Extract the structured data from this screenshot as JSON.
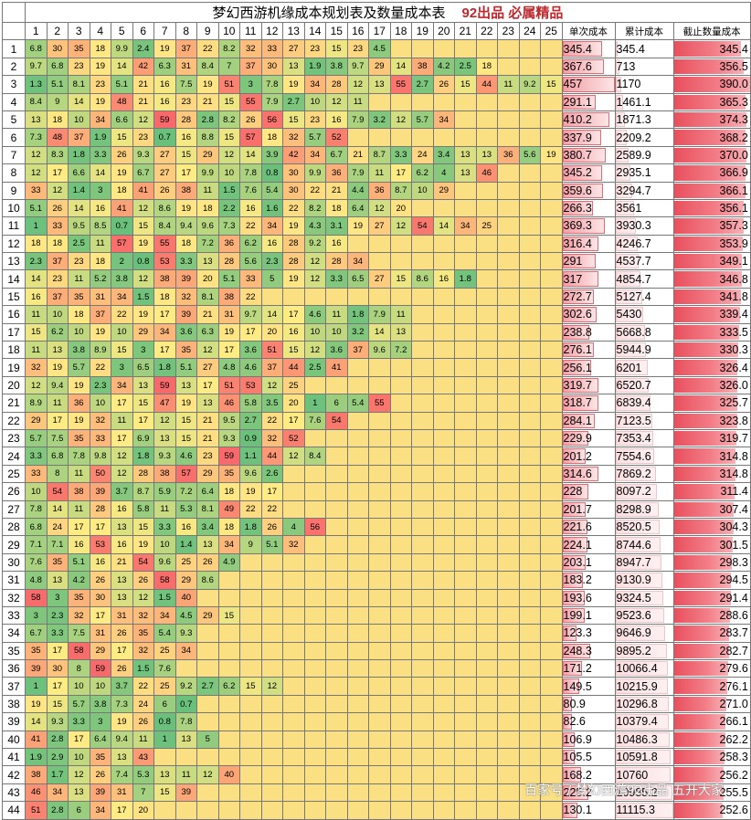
{
  "header": {
    "title": "梦幻西游机缘成本规划表及数量成本表",
    "tag": "92出品  必属精品",
    "col_single": "单次成本",
    "col_cum": "累计成本",
    "col_avg": "截止数量成本"
  },
  "columns": [
    "1",
    "2",
    "3",
    "4",
    "5",
    "6",
    "7",
    "8",
    "9",
    "10",
    "11",
    "12",
    "13",
    "14",
    "15",
    "16",
    "17",
    "18",
    "19",
    "20",
    "21",
    "22",
    "23",
    "24",
    "25"
  ],
  "rows": [
    {
      "n": "1",
      "v": [
        "6.8",
        "30",
        "35",
        "18",
        "9.9",
        "2.4",
        "19",
        "37",
        "22",
        "8.2",
        "32",
        "33",
        "27",
        "23",
        "15",
        "23",
        "4.5"
      ],
      "single": "345.4",
      "cum": "345.4",
      "avg": "345.4"
    },
    {
      "n": "2",
      "v": [
        "9.7",
        "6.8",
        "23",
        "19",
        "14",
        "42",
        "6.3",
        "31",
        "8.4",
        "7",
        "37",
        "30",
        "13",
        "1.9",
        "3.8",
        "9.7",
        "29",
        "14",
        "38",
        "4.2",
        "2.5",
        "18"
      ],
      "single": "367.6",
      "cum": "713",
      "avg": "356.5"
    },
    {
      "n": "3",
      "v": [
        "1.3",
        "5.1",
        "8.1",
        "23",
        "5.1",
        "21",
        "16",
        "7.5",
        "19",
        "51",
        "3",
        "7.8",
        "19",
        "34",
        "28",
        "12",
        "13",
        "55",
        "2.7",
        "26",
        "15",
        "44",
        "11",
        "9.2",
        "15"
      ],
      "single": "457",
      "cum": "1170",
      "avg": "390.0"
    },
    {
      "n": "4",
      "v": [
        "8.4",
        "9",
        "14",
        "19",
        "48",
        "21",
        "16",
        "23",
        "21",
        "15",
        "55",
        "7.9",
        "2.7",
        "10",
        "12",
        "11"
      ],
      "single": "291.1",
      "cum": "1461.1",
      "avg": "365.3"
    },
    {
      "n": "5",
      "v": [
        "13",
        "18",
        "10",
        "34",
        "6.6",
        "12",
        "59",
        "28",
        "2.8",
        "8.2",
        "26",
        "56",
        "15",
        "23",
        "16",
        "7.9",
        "3.2",
        "12",
        "5.7",
        "34"
      ],
      "single": "410.2",
      "cum": "1871.3",
      "avg": "374.3"
    },
    {
      "n": "6",
      "v": [
        "7.3",
        "48",
        "37",
        "1.9",
        "15",
        "23",
        "0.7",
        "16",
        "8.8",
        "15",
        "57",
        "18",
        "32",
        "5.7",
        "52"
      ],
      "single": "337.9",
      "cum": "2209.2",
      "avg": "368.2"
    },
    {
      "n": "7",
      "v": [
        "12",
        "8.3",
        "1.8",
        "3.3",
        "26",
        "9.3",
        "27",
        "15",
        "29",
        "12",
        "14",
        "3.9",
        "42",
        "34",
        "6.7",
        "21",
        "8.7",
        "3.3",
        "24",
        "3.4",
        "13",
        "13",
        "36",
        "5.6",
        "19"
      ],
      "single": "380.7",
      "cum": "2589.9",
      "avg": "370.0"
    },
    {
      "n": "8",
      "v": [
        "12",
        "17",
        "6.6",
        "14",
        "19",
        "6.7",
        "27",
        "17",
        "9.9",
        "10",
        "7.8",
        "0.8",
        "30",
        "9.9",
        "36",
        "7.9",
        "11",
        "17",
        "6.2",
        "4",
        "13",
        "46"
      ],
      "single": "345.2",
      "cum": "2935.1",
      "avg": "366.9"
    },
    {
      "n": "9",
      "v": [
        "33",
        "12",
        "1.4",
        "3",
        "18",
        "41",
        "26",
        "38",
        "11",
        "1.5",
        "7.6",
        "5.4",
        "30",
        "22",
        "21",
        "4.4",
        "36",
        "8.7",
        "10",
        "29"
      ],
      "single": "359.6",
      "cum": "3294.7",
      "avg": "366.1"
    },
    {
      "n": "10",
      "v": [
        "5.1",
        "26",
        "14",
        "16",
        "41",
        "12",
        "8.6",
        "19",
        "18",
        "2.2",
        "16",
        "1.6",
        "22",
        "8.2",
        "18",
        "6.4",
        "12",
        "20"
      ],
      "single": "266.3",
      "cum": "3561",
      "avg": "356.1"
    },
    {
      "n": "11",
      "v": [
        "1",
        "33",
        "9.5",
        "8.5",
        "0.7",
        "15",
        "8.4",
        "9.4",
        "9.6",
        "7.3",
        "22",
        "34",
        "19",
        "4.3",
        "3.1",
        "19",
        "27",
        "12",
        "54",
        "14",
        "34",
        "25"
      ],
      "single": "369.3",
      "cum": "3930.3",
      "avg": "357.3"
    },
    {
      "n": "12",
      "v": [
        "18",
        "18",
        "2.5",
        "11",
        "57",
        "19",
        "55",
        "18",
        "7.2",
        "36",
        "6.2",
        "16",
        "28",
        "9.2",
        "16"
      ],
      "single": "316.4",
      "cum": "4246.7",
      "avg": "353.9"
    },
    {
      "n": "13",
      "v": [
        "2.3",
        "37",
        "23",
        "18",
        "2",
        "0.8",
        "53",
        "3.3",
        "13",
        "28",
        "5.6",
        "2.3",
        "28",
        "12",
        "28",
        "34"
      ],
      "single": "291",
      "cum": "4537.7",
      "avg": "349.1"
    },
    {
      "n": "14",
      "v": [
        "14",
        "23",
        "11",
        "5.2",
        "3.8",
        "12",
        "38",
        "39",
        "20",
        "5.1",
        "33",
        "5",
        "19",
        "12",
        "3.3",
        "6.5",
        "27",
        "15",
        "8.6",
        "16",
        "1.8"
      ],
      "single": "317",
      "cum": "4854.7",
      "avg": "346.8"
    },
    {
      "n": "15",
      "v": [
        "16",
        "37",
        "35",
        "31",
        "34",
        "1.5",
        "18",
        "32",
        "8.1",
        "38",
        "22"
      ],
      "single": "272.7",
      "cum": "5127.4",
      "avg": "341.8"
    },
    {
      "n": "16",
      "v": [
        "11",
        "10",
        "18",
        "37",
        "22",
        "19",
        "17",
        "39",
        "21",
        "31",
        "9.7",
        "14",
        "17",
        "4.6",
        "11",
        "1.8",
        "7.9",
        "11"
      ],
      "single": "302.6",
      "cum": "5430",
      "avg": "339.4"
    },
    {
      "n": "17",
      "v": [
        "15",
        "6.2",
        "10",
        "19",
        "10",
        "29",
        "34",
        "3.6",
        "6.3",
        "19",
        "17",
        "20",
        "16",
        "10",
        "10",
        "3.2",
        "14",
        "13"
      ],
      "single": "238.8",
      "cum": "5668.8",
      "avg": "333.5"
    },
    {
      "n": "18",
      "v": [
        "11",
        "13",
        "3.8",
        "8.9",
        "15",
        "3",
        "17",
        "35",
        "12",
        "17",
        "3.6",
        "51",
        "15",
        "12",
        "3.6",
        "37",
        "9.6",
        "7.2"
      ],
      "single": "276.1",
      "cum": "5944.9",
      "avg": "330.3"
    },
    {
      "n": "19",
      "v": [
        "32",
        "19",
        "5.7",
        "22",
        "3",
        "6.5",
        "1.8",
        "5.1",
        "27",
        "4.8",
        "4.6",
        "37",
        "44",
        "2.5",
        "41"
      ],
      "single": "256.1",
      "cum": "6201",
      "avg": "326.4"
    },
    {
      "n": "20",
      "v": [
        "12",
        "9.4",
        "19",
        "2.3",
        "34",
        "13",
        "59",
        "13",
        "17",
        "51",
        "53",
        "12",
        "25"
      ],
      "single": "319.7",
      "cum": "6520.7",
      "avg": "326.0"
    },
    {
      "n": "21",
      "v": [
        "8.9",
        "11",
        "36",
        "10",
        "17",
        "15",
        "47",
        "19",
        "13",
        "46",
        "5.8",
        "3.5",
        "20",
        "1",
        "6",
        "5.4",
        "55"
      ],
      "single": "318.7",
      "cum": "6839.4",
      "avg": "325.7"
    },
    {
      "n": "22",
      "v": [
        "29",
        "17",
        "19",
        "32",
        "11",
        "17",
        "12",
        "15",
        "21",
        "9.5",
        "2.7",
        "22",
        "17",
        "7.6",
        "54"
      ],
      "single": "284.1",
      "cum": "7123.5",
      "avg": "323.8"
    },
    {
      "n": "23",
      "v": [
        "5.7",
        "7.5",
        "35",
        "33",
        "17",
        "6.9",
        "13",
        "15",
        "21",
        "9.3",
        "0.9",
        "32",
        "52"
      ],
      "single": "229.9",
      "cum": "7353.4",
      "avg": "319.7"
    },
    {
      "n": "24",
      "v": [
        "3.3",
        "6.8",
        "7.8",
        "9.8",
        "12",
        "1.8",
        "9.3",
        "4.6",
        "23",
        "59",
        "1.1",
        "44",
        "12",
        "8.4"
      ],
      "single": "201.2",
      "cum": "7554.6",
      "avg": "314.8"
    },
    {
      "n": "25",
      "v": [
        "33",
        "8",
        "11",
        "50",
        "12",
        "28",
        "38",
        "57",
        "29",
        "35",
        "9.6",
        "2.6"
      ],
      "single": "314.6",
      "cum": "7869.2",
      "avg": "314.8"
    },
    {
      "n": "26",
      "v": [
        "10",
        "54",
        "38",
        "39",
        "3.7",
        "8.7",
        "5.9",
        "7.2",
        "6.4",
        "18",
        "19",
        "17"
      ],
      "single": "228",
      "cum": "8097.2",
      "avg": "311.4"
    },
    {
      "n": "27",
      "v": [
        "7.8",
        "14",
        "11",
        "28",
        "16",
        "5.8",
        "11",
        "5.3",
        "8.1",
        "49",
        "22",
        "22"
      ],
      "single": "201.7",
      "cum": "8298.9",
      "avg": "307.4"
    },
    {
      "n": "28",
      "v": [
        "6.8",
        "24",
        "17",
        "17",
        "13",
        "15",
        "3.3",
        "16",
        "3.4",
        "18",
        "1.8",
        "26",
        "4",
        "56"
      ],
      "single": "221.6",
      "cum": "8520.5",
      "avg": "304.3"
    },
    {
      "n": "29",
      "v": [
        "7.1",
        "7.1",
        "16",
        "53",
        "16",
        "19",
        "10",
        "1.4",
        "13",
        "34",
        "9",
        "5.1",
        "32"
      ],
      "single": "224.1",
      "cum": "8744.6",
      "avg": "301.5"
    },
    {
      "n": "30",
      "v": [
        "7.6",
        "35",
        "5.1",
        "16",
        "21",
        "54",
        "9.6",
        "25",
        "26",
        "4.9"
      ],
      "single": "203.1",
      "cum": "8947.7",
      "avg": "298.3"
    },
    {
      "n": "31",
      "v": [
        "4.8",
        "13",
        "4.2",
        "26",
        "13",
        "26",
        "58",
        "29",
        "8.6"
      ],
      "single": "183.2",
      "cum": "9130.9",
      "avg": "294.5"
    },
    {
      "n": "32",
      "v": [
        "58",
        "3",
        "35",
        "30",
        "13",
        "12",
        "1.5",
        "40"
      ],
      "single": "193.6",
      "cum": "9324.5",
      "avg": "291.4"
    },
    {
      "n": "33",
      "v": [
        "3",
        "2.3",
        "32",
        "17",
        "31",
        "32",
        "34",
        "4.5",
        "29",
        "15"
      ],
      "single": "199.1",
      "cum": "9523.6",
      "avg": "288.6"
    },
    {
      "n": "34",
      "v": [
        "6.7",
        "3.3",
        "7.5",
        "31",
        "26",
        "35",
        "5.4",
        "9.3"
      ],
      "single": "123.3",
      "cum": "9646.9",
      "avg": "283.7"
    },
    {
      "n": "35",
      "v": [
        "35",
        "17",
        "58",
        "29",
        "17",
        "32",
        "25",
        "34"
      ],
      "single": "248.3",
      "cum": "9895.2",
      "avg": "282.7"
    },
    {
      "n": "36",
      "v": [
        "39",
        "30",
        "8",
        "59",
        "26",
        "1.5",
        "7.6"
      ],
      "single": "171.2",
      "cum": "10066.4",
      "avg": "279.6"
    },
    {
      "n": "37",
      "v": [
        "1",
        "17",
        "10",
        "10",
        "3.7",
        "22",
        "25",
        "9.2",
        "2.7",
        "6.2",
        "15",
        "12"
      ],
      "single": "149.5",
      "cum": "10215.9",
      "avg": "276.1"
    },
    {
      "n": "38",
      "v": [
        "19",
        "15",
        "5.7",
        "3.8",
        "7.3",
        "24",
        "6",
        "0.7"
      ],
      "single": "80.9",
      "cum": "10296.8",
      "avg": "271.0"
    },
    {
      "n": "39",
      "v": [
        "14",
        "9.3",
        "3.3",
        "3",
        "19",
        "26",
        "0.8",
        "7.8"
      ],
      "single": "82.6",
      "cum": "10379.4",
      "avg": "266.1"
    },
    {
      "n": "40",
      "v": [
        "41",
        "2.8",
        "17",
        "6.4",
        "9.4",
        "11",
        "1",
        "13",
        "5"
      ],
      "single": "106.9",
      "cum": "10486.3",
      "avg": "262.2"
    },
    {
      "n": "41",
      "v": [
        "1.9",
        "2.9",
        "10",
        "35",
        "13",
        "43"
      ],
      "single": "105.5",
      "cum": "10591.8",
      "avg": "258.3"
    },
    {
      "n": "42",
      "v": [
        "38",
        "1.7",
        "12",
        "26",
        "7.4",
        "5.3",
        "13",
        "11",
        "12",
        "40"
      ],
      "single": "168.2",
      "cum": "10760",
      "avg": "256.2"
    },
    {
      "n": "43",
      "v": [
        "46",
        "34",
        "13",
        "39",
        "31",
        "7",
        "15",
        "39"
      ],
      "single": "225.2",
      "cum": "10985.2",
      "avg": "255.5"
    },
    {
      "n": "44",
      "v": [
        "51",
        "2.8",
        "6",
        "34",
        "17",
        "20"
      ],
      "single": "130.1",
      "cum": "11115.3",
      "avg": "252.6"
    }
  ],
  "watermark": "百家号 / 梦幻西游92出品 五开大家",
  "colors": {
    "low": "#63be7b",
    "mid": "#ffeb84",
    "high": "#f8696b",
    "empty": "#fbe083",
    "bar": "#f27e88"
  }
}
